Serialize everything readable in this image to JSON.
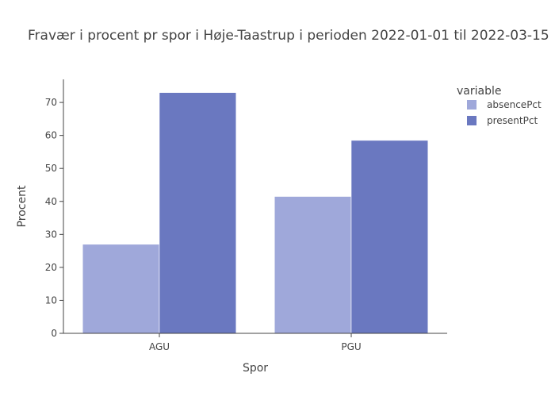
{
  "chart_data": {
    "type": "bar",
    "title": "Fravær i procent pr spor i Høje-Taastrup i perioden 2022-01-01 til 2022-03-15",
    "xlabel": "Spor",
    "ylabel": "Procent",
    "categories": [
      "AGU",
      "PGU"
    ],
    "series": [
      {
        "name": "absencePct",
        "values": [
          27.0,
          41.5
        ]
      },
      {
        "name": "presentPct",
        "values": [
          73.0,
          58.5
        ]
      }
    ],
    "ylim": [
      0,
      77
    ],
    "yticks": [
      0,
      10,
      20,
      30,
      40,
      50,
      60,
      70
    ],
    "grid": false,
    "legend": {
      "title": "variable",
      "position": "top-right"
    },
    "colors": {
      "absencePct": "#9fa8da",
      "presentPct": "#6a78c0"
    }
  }
}
